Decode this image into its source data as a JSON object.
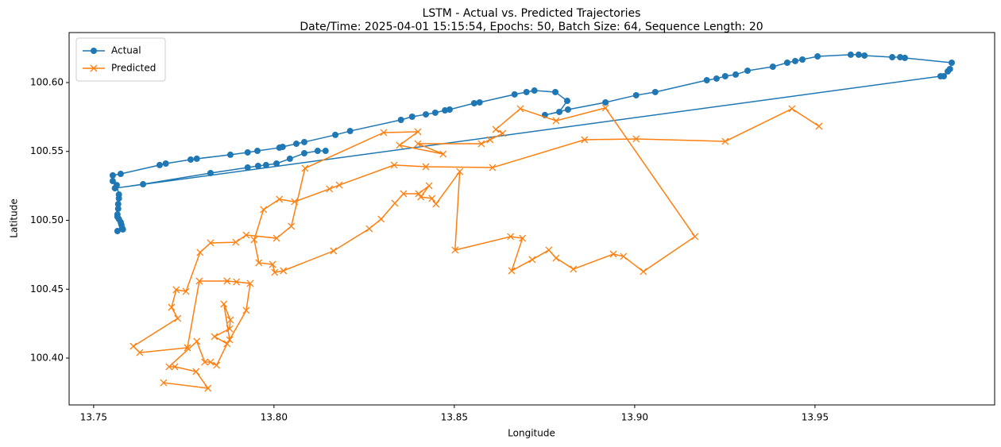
{
  "chart_data": {
    "type": "line",
    "title": "LSTM - Actual vs. Predicted Trajectories",
    "subtitle": "Date/Time: 2025-04-01 15:15:54, Epochs: 50, Batch Size: 64, Sequence Length: 20",
    "x_label": "Longitude",
    "y_label": "Latitude",
    "xlim": [
      13.7432,
      13.9998
    ],
    "ylim": [
      100.366,
      100.6363
    ],
    "xticks": [
      13.75,
      {
        "value": 13.8,
        "label": "13.80"
      },
      13.85,
      {
        "value": 13.9,
        "label": "13.90"
      },
      13.95
    ],
    "yticks": [
      {
        "value": 100.4,
        "label": "100.40"
      },
      100.45,
      {
        "value": 100.5,
        "label": "100.50"
      },
      100.55,
      {
        "value": 100.6,
        "label": "100.60"
      }
    ],
    "grid": false,
    "legend": "upper left",
    "series": [
      {
        "name": "Actual",
        "color": "#1f77b4",
        "marker": "o",
        "x": [
          13.7566,
          13.7581,
          13.7579,
          13.7577,
          13.7575,
          13.757,
          13.7566,
          13.7566,
          13.7568,
          13.7568,
          13.757,
          13.757,
          13.7564,
          13.7553,
          13.7553,
          13.7575,
          13.7683,
          13.77,
          13.7769,
          13.7786,
          13.7879,
          13.7927,
          13.7954,
          13.8015,
          13.8024,
          13.8062,
          13.8084,
          13.817,
          13.8211,
          13.8352,
          13.8383,
          13.8421,
          13.8447,
          13.8474,
          13.8487,
          13.8555,
          13.857,
          13.8667,
          13.87,
          13.8722,
          13.878,
          13.8813,
          13.8791,
          13.8751,
          13.8815,
          13.8919,
          13.9004,
          13.9057,
          13.92,
          13.9227,
          13.9251,
          13.928,
          13.9313,
          13.9383,
          13.9423,
          13.9445,
          13.9465,
          13.9507,
          13.9599,
          13.9621,
          13.9637,
          13.9714,
          13.9736,
          13.9749,
          13.9879,
          13.9874,
          13.9868,
          13.9857,
          13.9848,
          13.7559,
          13.7637,
          13.7824,
          13.7927,
          13.7956,
          13.7978,
          13.8007,
          13.8044,
          13.8084,
          13.8121,
          13.8143
        ],
        "y": [
          100.4922,
          100.4934,
          100.4945,
          100.4968,
          100.4986,
          100.5009,
          100.5026,
          100.5043,
          100.5084,
          100.5118,
          100.5159,
          100.5187,
          100.5256,
          100.5285,
          100.5326,
          100.5337,
          100.5401,
          100.5412,
          100.5441,
          100.5447,
          100.5476,
          100.5493,
          100.5504,
          100.5527,
          100.5533,
          100.5556,
          100.5568,
          100.562,
          100.5648,
          100.5729,
          100.5752,
          100.5769,
          100.5781,
          100.5798,
          100.5804,
          100.585,
          100.5856,
          100.5914,
          100.5931,
          100.5942,
          100.5931,
          100.5867,
          100.5787,
          100.5764,
          100.5804,
          100.5856,
          100.5908,
          100.5931,
          100.6017,
          100.6029,
          100.6046,
          100.6058,
          100.6086,
          100.6115,
          100.6144,
          100.6156,
          100.6167,
          100.619,
          100.6202,
          100.6202,
          100.6196,
          100.6184,
          100.6184,
          100.6179,
          100.6144,
          100.6098,
          100.6081,
          100.6046,
          100.6046,
          100.5233,
          100.5262,
          100.5343,
          100.5383,
          100.5395,
          100.5401,
          100.5412,
          100.5447,
          100.5487,
          100.5504,
          100.5504
        ]
      },
      {
        "name": "Predicted",
        "color": "#ff7f0e",
        "marker": "x",
        "x": [
          13.9511,
          13.9436,
          13.9251,
          13.9004,
          13.8861,
          13.8606,
          13.8421,
          13.8333,
          13.8181,
          13.8154,
          13.8057,
          13.8015,
          13.7971,
          13.7945,
          13.7958,
          13.7996,
          13.8002,
          13.8026,
          13.8165,
          13.8264,
          13.8297,
          13.8335,
          13.8359,
          13.8401,
          13.843,
          13.8407,
          13.8438,
          13.8449,
          13.8515,
          13.8502,
          13.8656,
          13.8689,
          13.8659,
          13.8716,
          13.8762,
          13.8782,
          13.883,
          13.8941,
          13.8969,
          13.9024,
          13.9167,
          13.8919,
          13.8782,
          13.8683,
          13.8615,
          13.8634,
          13.8599,
          13.8575,
          13.8399,
          13.8469,
          13.8348,
          13.8399,
          13.8304,
          13.8086,
          13.8048,
          13.8007,
          13.7923,
          13.7894,
          13.7824,
          13.7795,
          13.7756,
          13.7729,
          13.7716,
          13.7733,
          13.761,
          13.7628,
          13.776,
          13.7793,
          13.787,
          13.7896,
          13.7934,
          13.7923,
          13.7877,
          13.7861,
          13.7879,
          13.7877,
          13.7835,
          13.787,
          13.7841,
          13.7824,
          13.7808,
          13.7786,
          13.7709,
          13.7725,
          13.7784,
          13.7817,
          13.7694
        ],
        "y": [
          100.5683,
          100.581,
          100.5573,
          100.5591,
          100.5585,
          100.5383,
          100.5389,
          100.5401,
          100.5256,
          100.5228,
          100.5135,
          100.5153,
          100.5078,
          100.4859,
          100.4692,
          100.468,
          100.4622,
          100.4634,
          100.4778,
          100.4939,
          100.5009,
          100.5124,
          100.5193,
          100.5193,
          100.5251,
          100.517,
          100.5159,
          100.5118,
          100.5354,
          100.4784,
          100.4882,
          100.487,
          100.4634,
          100.4715,
          100.4784,
          100.4726,
          100.4646,
          100.4755,
          100.4738,
          100.4628,
          100.4882,
          100.5816,
          100.5723,
          100.581,
          100.566,
          100.5631,
          100.5585,
          100.5556,
          100.5556,
          100.5481,
          100.5545,
          100.5643,
          100.5637,
          100.5378,
          100.4957,
          100.487,
          100.4893,
          100.4841,
          100.4836,
          100.4767,
          100.4484,
          100.4496,
          100.4369,
          100.4288,
          100.4086,
          100.404,
          100.4075,
          100.4559,
          100.4559,
          100.4553,
          100.4542,
          100.4346,
          100.4133,
          100.4392,
          100.4277,
          100.4213,
          100.4156,
          100.4104,
          100.3948,
          100.3971,
          100.3971,
          100.4121,
          100.3937,
          100.3937,
          100.3902,
          100.3781,
          100.3821
        ]
      }
    ]
  }
}
